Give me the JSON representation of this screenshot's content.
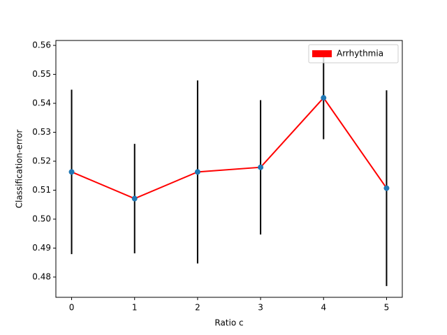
{
  "chart_data": {
    "type": "errorbar-line",
    "x_label": "Ratio c",
    "y_label": "Classification-error",
    "x": [
      0,
      1,
      2,
      3,
      4,
      5
    ],
    "series": [
      {
        "name": "Arrhythmia",
        "color": "#ff0000",
        "marker_color": "#1f77b4",
        "error_color": "#000000",
        "values": [
          0.5163,
          0.5071,
          0.5163,
          0.5179,
          0.5419,
          0.5107
        ],
        "errors": [
          0.0284,
          0.0189,
          0.0316,
          0.0232,
          0.0143,
          0.0338
        ]
      }
    ],
    "xlim": [
      -0.25,
      5.25
    ],
    "xticks": [
      0,
      1,
      2,
      3,
      4,
      5
    ],
    "ylim": [
      0.473,
      0.5617
    ],
    "yticks": [
      0.48,
      0.49,
      {
        "value": 0.5,
        "label": "0.50"
      },
      0.51,
      0.52,
      0.53,
      0.54,
      0.55,
      0.56
    ],
    "legend": "upper right",
    "grid": false
  }
}
